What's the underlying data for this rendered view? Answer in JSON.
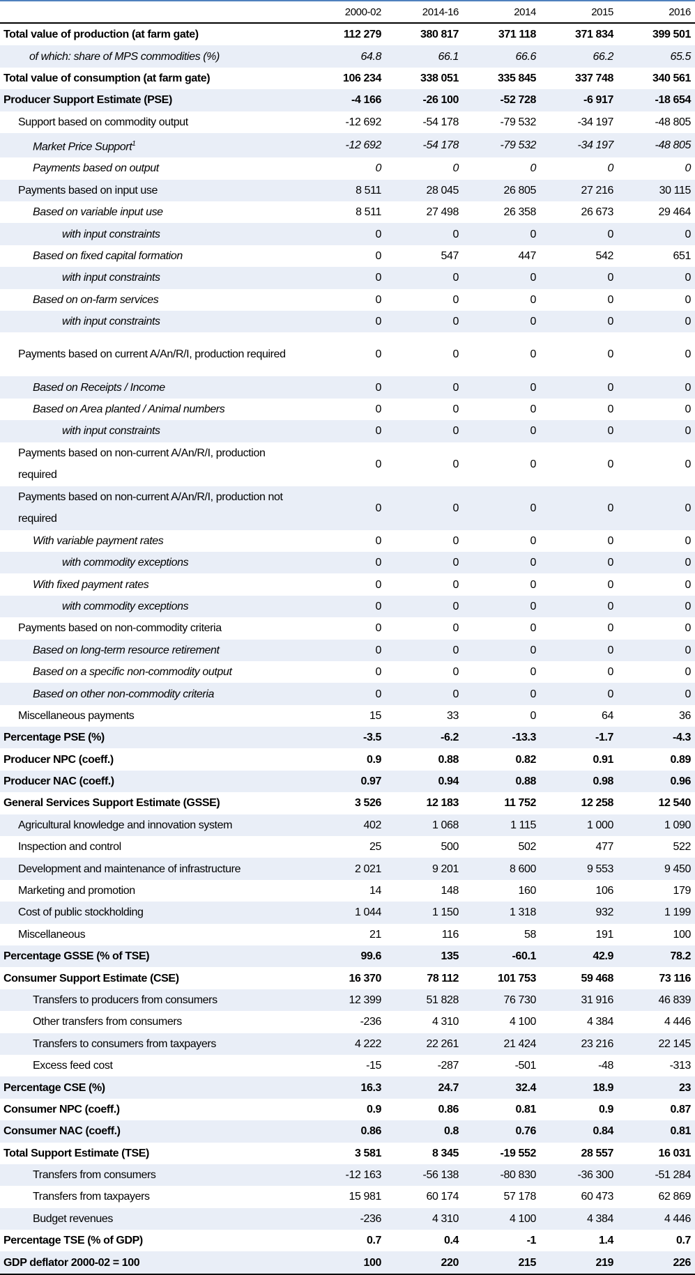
{
  "table": {
    "columns": [
      "2000-02",
      "2014-16",
      "2014",
      "2015",
      "2016"
    ],
    "rows": [
      {
        "label": "Total value of production (at farm gate)",
        "values": [
          "112 279",
          "380 817",
          "371 118",
          "371 834",
          "399 501"
        ]
      },
      {
        "label": "of which: share of MPS commodities (%)",
        "values": [
          "64.8",
          "66.1",
          "66.6",
          "66.2",
          "65.5"
        ]
      },
      {
        "label": "Total value of consumption (at farm gate)",
        "values": [
          "106 234",
          "338 051",
          "335 845",
          "337 748",
          "340 561"
        ]
      },
      {
        "label": "Producer Support Estimate (PSE)",
        "values": [
          "-4 166",
          "-26 100",
          "-52 728",
          "-6 917",
          "-18 654"
        ]
      },
      {
        "label": "Support based on commodity output",
        "values": [
          "-12 692",
          "-54 178",
          "-79 532",
          "-34 197",
          "-48 805"
        ]
      },
      {
        "label": "Market Price Support",
        "note": "1",
        "values": [
          "-12 692",
          "-54 178",
          "-79 532",
          "-34 197",
          "-48 805"
        ]
      },
      {
        "label": "Payments based on output",
        "values": [
          "0",
          "0",
          "0",
          "0",
          "0"
        ]
      },
      {
        "label": "Payments based on input use",
        "values": [
          "8 511",
          "28 045",
          "26 805",
          "27 216",
          "30 115"
        ]
      },
      {
        "label": "Based on variable input use",
        "values": [
          "8 511",
          "27 498",
          "26 358",
          "26 673",
          "29 464"
        ]
      },
      {
        "label": "with input constraints",
        "values": [
          "0",
          "0",
          "0",
          "0",
          "0"
        ]
      },
      {
        "label": "Based on fixed capital formation",
        "values": [
          "0",
          "547",
          "447",
          "542",
          "651"
        ]
      },
      {
        "label": "with input constraints",
        "values": [
          "0",
          "0",
          "0",
          "0",
          "0"
        ]
      },
      {
        "label": "Based on on-farm services",
        "values": [
          "0",
          "0",
          "0",
          "0",
          "0"
        ]
      },
      {
        "label": "with input constraints",
        "values": [
          "0",
          "0",
          "0",
          "0",
          "0"
        ]
      },
      {
        "label": "Payments based on current A/An/R/I, production required",
        "values": [
          "0",
          "0",
          "0",
          "0",
          "0"
        ]
      },
      {
        "label": "Based on Receipts / Income",
        "values": [
          "0",
          "0",
          "0",
          "0",
          "0"
        ]
      },
      {
        "label": "Based on Area planted / Animal numbers",
        "values": [
          "0",
          "0",
          "0",
          "0",
          "0"
        ]
      },
      {
        "label": "with input constraints",
        "values": [
          "0",
          "0",
          "0",
          "0",
          "0"
        ]
      },
      {
        "label": "Payments based on non-current A/An/R/I, production required",
        "values": [
          "0",
          "0",
          "0",
          "0",
          "0"
        ]
      },
      {
        "label": "Payments based on non-current A/An/R/I, production not required",
        "values": [
          "0",
          "0",
          "0",
          "0",
          "0"
        ]
      },
      {
        "label": "With variable payment rates",
        "values": [
          "0",
          "0",
          "0",
          "0",
          "0"
        ]
      },
      {
        "label": "with commodity exceptions",
        "values": [
          "0",
          "0",
          "0",
          "0",
          "0"
        ]
      },
      {
        "label": "With fixed payment rates",
        "values": [
          "0",
          "0",
          "0",
          "0",
          "0"
        ]
      },
      {
        "label": "with commodity exceptions",
        "values": [
          "0",
          "0",
          "0",
          "0",
          "0"
        ]
      },
      {
        "label": "Payments based on non-commodity criteria",
        "values": [
          "0",
          "0",
          "0",
          "0",
          "0"
        ]
      },
      {
        "label": "Based on long-term resource retirement",
        "values": [
          "0",
          "0",
          "0",
          "0",
          "0"
        ]
      },
      {
        "label": "Based on a specific non-commodity output",
        "values": [
          "0",
          "0",
          "0",
          "0",
          "0"
        ]
      },
      {
        "label": "Based on other non-commodity criteria",
        "values": [
          "0",
          "0",
          "0",
          "0",
          "0"
        ]
      },
      {
        "label": "Miscellaneous payments",
        "values": [
          "15",
          "33",
          "0",
          "64",
          "36"
        ]
      },
      {
        "label": "Percentage PSE (%)",
        "values": [
          "-3.5",
          "-6.2",
          "-13.3",
          "-1.7",
          "-4.3"
        ]
      },
      {
        "label": "Producer NPC (coeff.)",
        "values": [
          "0.9",
          "0.88",
          "0.82",
          "0.91",
          "0.89"
        ]
      },
      {
        "label": "Producer NAC (coeff.)",
        "values": [
          "0.97",
          "0.94",
          "0.88",
          "0.98",
          "0.96"
        ]
      },
      {
        "label": "General Services Support Estimate (GSSE)",
        "values": [
          "3 526",
          "12 183",
          "11 752",
          "12 258",
          "12 540"
        ]
      },
      {
        "label": "Agricultural knowledge and innovation system",
        "values": [
          "402",
          "1 068",
          "1 115",
          "1 000",
          "1 090"
        ]
      },
      {
        "label": "Inspection and control",
        "values": [
          "25",
          "500",
          "502",
          "477",
          "522"
        ]
      },
      {
        "label": "Development and maintenance of infrastructure",
        "values": [
          "2 021",
          "9 201",
          "8 600",
          "9 553",
          "9 450"
        ]
      },
      {
        "label": "Marketing and promotion",
        "values": [
          "14",
          "148",
          "160",
          "106",
          "179"
        ]
      },
      {
        "label": "Cost of public stockholding",
        "values": [
          "1 044",
          "1 150",
          "1 318",
          "932",
          "1 199"
        ]
      },
      {
        "label": "Miscellaneous",
        "values": [
          "21",
          "116",
          "58",
          "191",
          "100"
        ]
      },
      {
        "label": "Percentage GSSE (% of TSE)",
        "values": [
          "99.6",
          "135",
          "-60.1",
          "42.9",
          "78.2"
        ]
      },
      {
        "label": "Consumer Support Estimate (CSE)",
        "values": [
          "16 370",
          "78 112",
          "101 753",
          "59 468",
          "73 116"
        ]
      },
      {
        "label": "Transfers to producers from consumers",
        "values": [
          "12 399",
          "51 828",
          "76 730",
          "31 916",
          "46 839"
        ]
      },
      {
        "label": "Other transfers from consumers",
        "values": [
          "-236",
          "4 310",
          "4 100",
          "4 384",
          "4 446"
        ]
      },
      {
        "label": "Transfers to consumers from taxpayers",
        "values": [
          "4 222",
          "22 261",
          "21 424",
          "23 216",
          "22 145"
        ]
      },
      {
        "label": "Excess feed cost",
        "values": [
          "-15",
          "-287",
          "-501",
          "-48",
          "-313"
        ]
      },
      {
        "label": "Percentage CSE (%)",
        "values": [
          "16.3",
          "24.7",
          "32.4",
          "18.9",
          "23"
        ]
      },
      {
        "label": "Consumer NPC (coeff.)",
        "values": [
          "0.9",
          "0.86",
          "0.81",
          "0.9",
          "0.87"
        ]
      },
      {
        "label": "Consumer NAC (coeff.)",
        "values": [
          "0.86",
          "0.8",
          "0.76",
          "0.84",
          "0.81"
        ]
      },
      {
        "label": "Total Support Estimate (TSE)",
        "values": [
          "3 581",
          "8 345",
          "-19 552",
          "28 557",
          "16 031"
        ]
      },
      {
        "label": "Transfers from consumers",
        "values": [
          "-12 163",
          "-56 138",
          "-80 830",
          "-36 300",
          "-51 284"
        ]
      },
      {
        "label": "Transfers from taxpayers",
        "values": [
          "15 981",
          "60 174",
          "57 178",
          "60 473",
          "62 869"
        ]
      },
      {
        "label": "Budget revenues",
        "values": [
          "-236",
          "4 310",
          "4 100",
          "4 384",
          "4 446"
        ]
      },
      {
        "label": "Percentage TSE (% of GDP)",
        "values": [
          "0.7",
          "0.4",
          "-1",
          "1.4",
          "0.7"
        ]
      },
      {
        "label": "GDP deflator 2000-02 = 100",
        "values": [
          "100",
          "220",
          "215",
          "219",
          "226"
        ]
      }
    ]
  }
}
